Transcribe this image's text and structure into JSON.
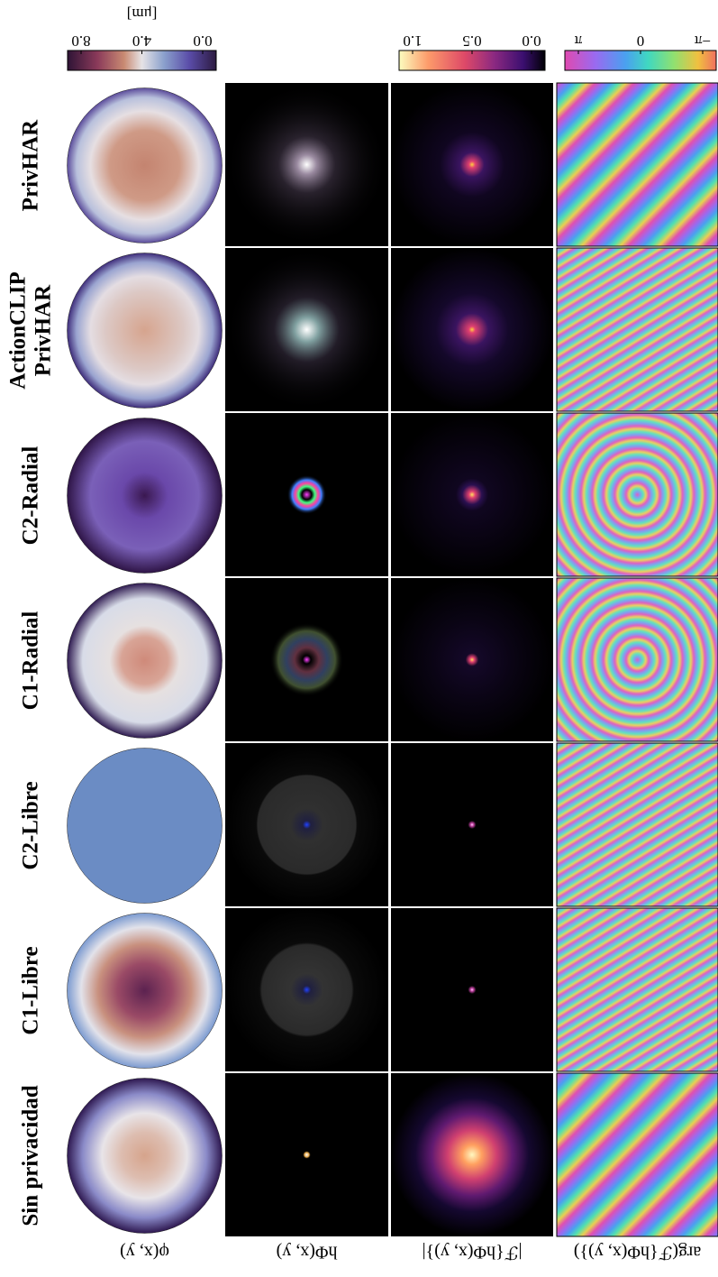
{
  "colorbars": [
    {
      "unit": "[μm]",
      "ticks": [
        "8.0",
        "4.0",
        "0.0"
      ]
    },
    {
      "ticks": [
        "1.0",
        "0.5",
        "0.0"
      ]
    },
    {
      "ticks": [
        "π",
        "0",
        "−π"
      ]
    }
  ],
  "rows": [
    [
      "PrivHAR"
    ],
    [
      "ActionCLIP",
      "PrivHAR"
    ],
    [
      "C2-Radial"
    ],
    [
      "C1-Radial"
    ],
    [
      "C2-Libre"
    ],
    [
      "C1-Libre"
    ],
    [
      "Sin privacidad"
    ]
  ],
  "columns": [
    "φ(x, y)",
    "hΦ(x, y)",
    "|ℱ{hΦ(x, y)}|",
    "arg(ℱ{hΦ(x, y)})"
  ]
}
